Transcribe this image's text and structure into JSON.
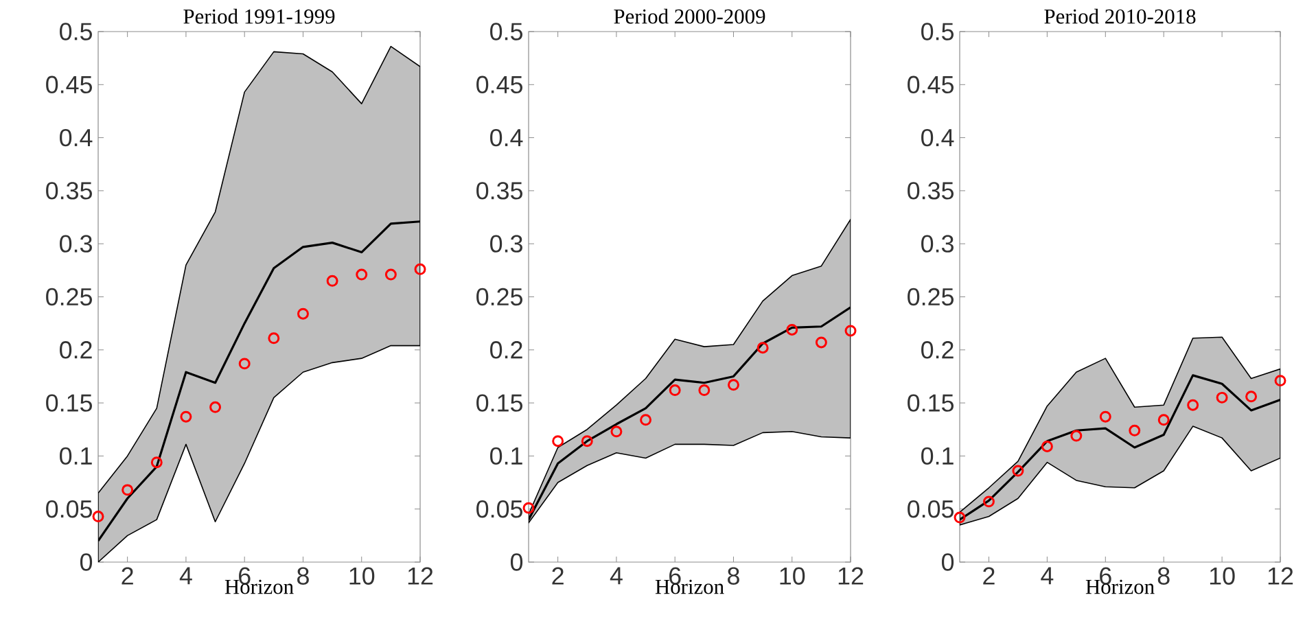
{
  "chart_data": [
    {
      "type": "line",
      "title": "Period 1991-1999",
      "xlabel": "Horizon",
      "x": [
        1,
        2,
        3,
        4,
        5,
        6,
        7,
        8,
        9,
        10,
        11,
        12
      ],
      "xlim": [
        1,
        12
      ],
      "xticks": [
        2,
        4,
        6,
        8,
        10,
        12
      ],
      "ylim": [
        0,
        0.5
      ],
      "yticks": [
        0,
        0.05,
        0.1,
        0.15,
        0.2,
        0.25,
        0.3,
        0.35,
        0.4,
        0.45,
        0.5
      ],
      "series": [
        {
          "color": "#000000",
          "marker": "none",
          "values": [
            0.02,
            0.06,
            0.09,
            0.179,
            0.169,
            0.225,
            0.277,
            0.297,
            0.301,
            0.292,
            0.319,
            0.321
          ],
          "lower": [
            0,
            0.025,
            0.04,
            0.111,
            0.038,
            0.093,
            0.155,
            0.179,
            0.188,
            0.192,
            0.204,
            0.204
          ],
          "upper": [
            0.065,
            0.1,
            0.145,
            0.28,
            0.33,
            0.443,
            0.481,
            0.479,
            0.462,
            0.432,
            0.486,
            0.467
          ]
        },
        {
          "type": "scatter",
          "color": "#ff0000",
          "marker": "circle",
          "values": [
            0.043,
            0.068,
            0.094,
            0.137,
            0.146,
            0.187,
            0.211,
            0.234,
            0.265,
            0.271,
            0.271,
            0.276
          ]
        }
      ]
    },
    {
      "type": "line",
      "title": "Period 2000-2009",
      "xlabel": "Horizon",
      "x": [
        1,
        2,
        3,
        4,
        5,
        6,
        7,
        8,
        9,
        10,
        11,
        12
      ],
      "xlim": [
        1,
        12
      ],
      "xticks": [
        2,
        4,
        6,
        8,
        10,
        12
      ],
      "ylim": [
        0,
        0.5
      ],
      "yticks": [
        0,
        0.05,
        0.1,
        0.15,
        0.2,
        0.25,
        0.3,
        0.35,
        0.4,
        0.45,
        0.5
      ],
      "series": [
        {
          "color": "#000000",
          "marker": "none",
          "values": [
            0.04,
            0.093,
            0.114,
            0.13,
            0.145,
            0.172,
            0.169,
            0.175,
            0.206,
            0.221,
            0.222,
            0.24
          ],
          "lower": [
            0.037,
            0.075,
            0.091,
            0.103,
            0.098,
            0.111,
            0.111,
            0.11,
            0.122,
            0.123,
            0.118,
            0.117
          ],
          "upper": [
            0.045,
            0.108,
            0.125,
            0.148,
            0.173,
            0.21,
            0.203,
            0.205,
            0.246,
            0.27,
            0.279,
            0.323
          ]
        },
        {
          "type": "scatter",
          "color": "#ff0000",
          "marker": "circle",
          "values": [
            0.051,
            0.114,
            0.114,
            0.123,
            0.134,
            0.162,
            0.162,
            0.167,
            0.202,
            0.219,
            0.207,
            0.218
          ]
        }
      ]
    },
    {
      "type": "line",
      "title": "Period 2010-2018",
      "xlabel": "Horizon",
      "x": [
        1,
        2,
        3,
        4,
        5,
        6,
        7,
        8,
        9,
        10,
        11,
        12
      ],
      "xlim": [
        1,
        12
      ],
      "xticks": [
        2,
        4,
        6,
        8,
        10,
        12
      ],
      "ylim": [
        0,
        0.5
      ],
      "yticks": [
        0,
        0.05,
        0.1,
        0.15,
        0.2,
        0.25,
        0.3,
        0.35,
        0.4,
        0.45,
        0.5
      ],
      "series": [
        {
          "color": "#000000",
          "marker": "none",
          "values": [
            0.04,
            0.058,
            0.085,
            0.114,
            0.124,
            0.126,
            0.108,
            0.12,
            0.176,
            0.168,
            0.143,
            0.153
          ],
          "lower": [
            0.035,
            0.043,
            0.06,
            0.094,
            0.077,
            0.071,
            0.07,
            0.086,
            0.128,
            0.117,
            0.086,
            0.098
          ],
          "upper": [
            0.047,
            0.07,
            0.095,
            0.147,
            0.179,
            0.192,
            0.146,
            0.148,
            0.211,
            0.212,
            0.173,
            0.182
          ]
        },
        {
          "type": "scatter",
          "color": "#ff0000",
          "marker": "circle",
          "values": [
            0.042,
            0.057,
            0.086,
            0.109,
            0.119,
            0.137,
            0.124,
            0.134,
            0.148,
            0.155,
            0.156,
            0.171
          ]
        }
      ]
    }
  ]
}
